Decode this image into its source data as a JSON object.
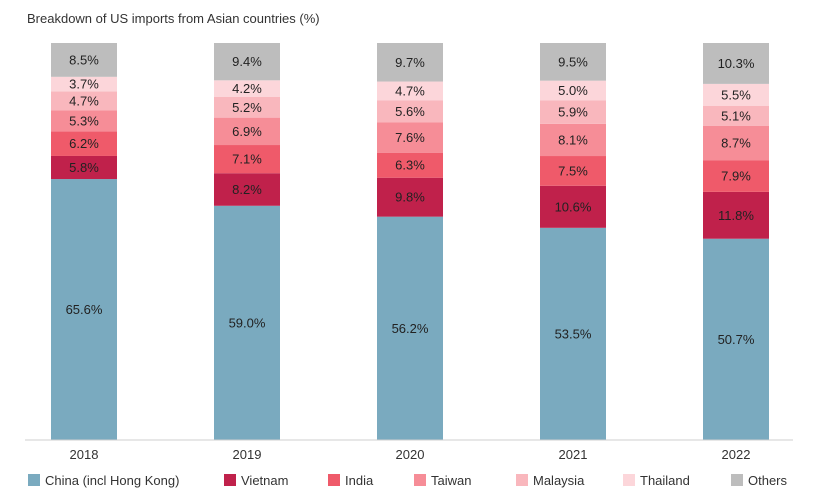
{
  "chart_data": {
    "type": "bar",
    "stacked": true,
    "title": "Breakdown of US imports from Asian countries (%)",
    "xlabel": "",
    "ylabel": "",
    "ylim": [
      0,
      100
    ],
    "categories": [
      "2018",
      "2019",
      "2020",
      "2021",
      "2022"
    ],
    "series": [
      {
        "name": "China (incl Hong Kong)",
        "color": "#7aaabf",
        "values": [
          65.6,
          59.0,
          56.2,
          53.5,
          50.7
        ],
        "labels": [
          "65.6%",
          "59.0%",
          "56.2%",
          "53.5%",
          "50.7%"
        ]
      },
      {
        "name": "Vietnam",
        "color": "#c0214b",
        "values": [
          5.8,
          8.2,
          9.8,
          10.6,
          11.8
        ],
        "labels": [
          "5.8%",
          "8.2%",
          "9.8%",
          "10.6%",
          "11.8%"
        ]
      },
      {
        "name": "India",
        "color": "#ef5a6a",
        "values": [
          6.2,
          7.1,
          6.3,
          7.5,
          7.9
        ],
        "labels": [
          "6.2%",
          "7.1%",
          "6.3%",
          "7.5%",
          "7.9%"
        ]
      },
      {
        "name": "Taiwan",
        "color": "#f68d97",
        "values": [
          5.3,
          6.9,
          7.6,
          8.1,
          8.7
        ],
        "labels": [
          "5.3%",
          "6.9%",
          "7.6%",
          "8.1%",
          "8.7%"
        ]
      },
      {
        "name": "Malaysia",
        "color": "#f9b7bd",
        "values": [
          4.7,
          5.2,
          5.6,
          5.9,
          5.1
        ],
        "labels": [
          "4.7%",
          "5.2%",
          "5.6%",
          "5.9%",
          "5.1%"
        ]
      },
      {
        "name": "Thailand",
        "color": "#fcd6da",
        "values": [
          3.7,
          4.2,
          4.7,
          5.0,
          5.5
        ],
        "labels": [
          "3.7%",
          "4.2%",
          "4.7%",
          "5.0%",
          "5.5%"
        ]
      },
      {
        "name": "Others",
        "color": "#bdbdbd",
        "values": [
          8.5,
          9.4,
          9.7,
          9.5,
          10.3
        ],
        "labels": [
          "8.5%",
          "9.4%",
          "9.7%",
          "9.5%",
          "10.3%"
        ]
      }
    ],
    "legend": "bottom",
    "grid": false
  }
}
